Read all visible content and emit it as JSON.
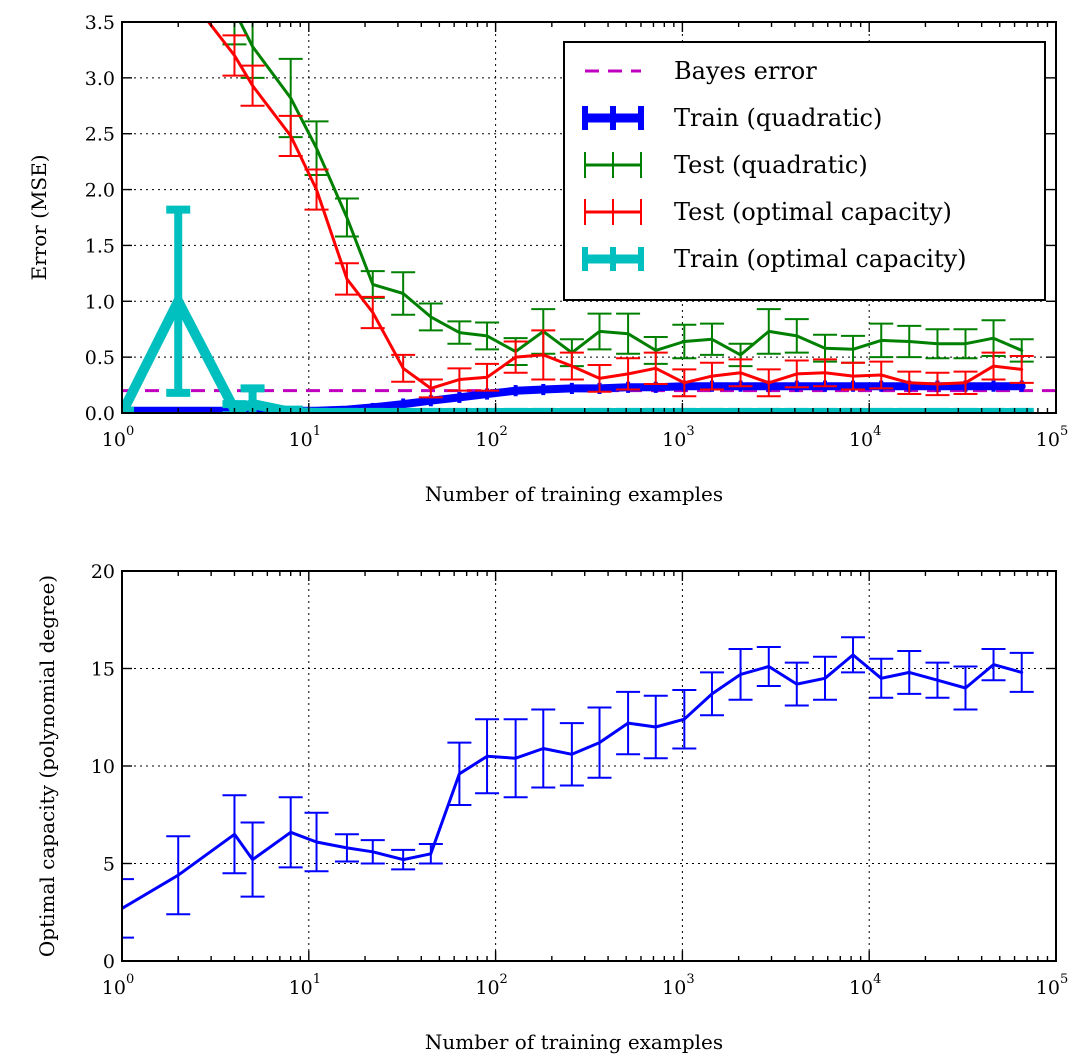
{
  "chart_data": [
    {
      "type": "line",
      "xscale": "log",
      "xlim": [
        1,
        100000
      ],
      "ylim": [
        0,
        3.5
      ],
      "xlabel": "Number of training examples",
      "ylabel": "Error (MSE)",
      "xticks": [
        {
          "base": "10",
          "exp": "0"
        },
        {
          "base": "10",
          "exp": "1"
        },
        {
          "base": "10",
          "exp": "2"
        },
        {
          "base": "10",
          "exp": "3"
        },
        {
          "base": "10",
          "exp": "4"
        },
        {
          "base": "10",
          "exp": "5"
        }
      ],
      "yticks": [
        {
          "value": 0,
          "label": "0.0"
        },
        {
          "value": 0.5,
          "label": "0.5"
        },
        {
          "value": 1.0,
          "label": "1.0"
        },
        {
          "value": 1.5,
          "label": "1.5"
        },
        {
          "value": 2.0,
          "label": "2.0"
        },
        {
          "value": 2.5,
          "label": "2.5"
        },
        {
          "value": 3.0,
          "label": "3.0"
        },
        {
          "value": 3.5,
          "label": "3.5"
        }
      ],
      "grid": true,
      "legend_position": "top-right",
      "x": [
        1,
        2,
        4,
        5,
        8,
        11,
        16,
        22,
        32,
        45,
        64,
        90,
        128,
        180,
        256,
        360,
        512,
        720,
        1024,
        1440,
        2048,
        2900,
        4096,
        5800,
        8192,
        11600,
        16384,
        23200,
        32768,
        46300,
        65536
      ],
      "bayes_error": {
        "name": "Bayes error",
        "color": "#bf00bf",
        "value": 0.2
      },
      "series": [
        {
          "name": "Train (quadratic)",
          "color": "#0000ff",
          "values": [
            0.02,
            0.02,
            0.02,
            0.02,
            0.02,
            0.02,
            0.03,
            0.05,
            0.08,
            0.11,
            0.14,
            0.17,
            0.2,
            0.21,
            0.22,
            0.22,
            0.23,
            0.23,
            0.24,
            0.24,
            0.24,
            0.24,
            0.24,
            0.24,
            0.24,
            0.24,
            0.24,
            0.24,
            0.24,
            0.24,
            0.24
          ],
          "errors": [
            0.02,
            0.02,
            0.02,
            0.02,
            0.02,
            0.02,
            0.03,
            0.04,
            0.05,
            0.05,
            0.05,
            0.05,
            0.05,
            0.05,
            0.05,
            0.05,
            0.05,
            0.05,
            0.05,
            0.05,
            0.05,
            0.05,
            0.05,
            0.05,
            0.05,
            0.05,
            0.05,
            0.05,
            0.05,
            0.05,
            0.05
          ]
        },
        {
          "name": "Test (quadratic)",
          "color": "#008000",
          "x": [
            4,
            5,
            8,
            11,
            16,
            22,
            32,
            45,
            64,
            90,
            128,
            180,
            256,
            360,
            512,
            720,
            1024,
            1440,
            2048,
            2900,
            4096,
            5800,
            8192,
            11600,
            16384,
            23200,
            32768,
            46300,
            65536
          ],
          "values": [
            3.6,
            3.28,
            2.82,
            2.37,
            1.75,
            1.15,
            1.07,
            0.86,
            0.72,
            0.69,
            0.55,
            0.73,
            0.54,
            0.73,
            0.71,
            0.56,
            0.64,
            0.66,
            0.52,
            0.73,
            0.69,
            0.58,
            0.57,
            0.65,
            0.64,
            0.62,
            0.62,
            0.67,
            0.56
          ],
          "errors": [
            0.3,
            0.28,
            0.35,
            0.24,
            0.17,
            0.12,
            0.19,
            0.12,
            0.1,
            0.12,
            0.12,
            0.2,
            0.12,
            0.16,
            0.18,
            0.12,
            0.15,
            0.14,
            0.1,
            0.2,
            0.15,
            0.12,
            0.12,
            0.15,
            0.14,
            0.13,
            0.13,
            0.16,
            0.1
          ]
        },
        {
          "name": "Test (optimal capacity)",
          "color": "#ff0000",
          "x": [
            1,
            4,
            5,
            8,
            11,
            16,
            22,
            32,
            45,
            64,
            90,
            128,
            180,
            256,
            360,
            512,
            720,
            1024,
            1440,
            2048,
            2900,
            4096,
            5800,
            8192,
            11600,
            16384,
            23200,
            32768,
            46300,
            65536
          ],
          "values": [
            4.5,
            3.2,
            2.93,
            2.48,
            2.0,
            1.2,
            0.9,
            0.4,
            0.22,
            0.3,
            0.32,
            0.5,
            0.52,
            0.42,
            0.31,
            0.35,
            0.4,
            0.27,
            0.33,
            0.36,
            0.27,
            0.35,
            0.36,
            0.33,
            0.34,
            0.27,
            0.26,
            0.27,
            0.42,
            0.39
          ],
          "errors": [
            0.3,
            0.18,
            0.18,
            0.18,
            0.18,
            0.14,
            0.14,
            0.12,
            0.08,
            0.1,
            0.12,
            0.14,
            0.22,
            0.12,
            0.12,
            0.14,
            0.14,
            0.12,
            0.12,
            0.12,
            0.12,
            0.12,
            0.12,
            0.12,
            0.12,
            0.1,
            0.1,
            0.1,
            0.12,
            0.12
          ]
        },
        {
          "name": "Train (optimal capacity)",
          "color": "#00bfbf",
          "values": [
            0.0,
            1.0,
            0.03,
            0.08,
            0.01,
            0.0,
            0.0,
            0.0,
            0.0,
            0.0,
            0.0,
            0.0,
            0.0,
            0.0,
            0.0,
            0.0,
            0.0,
            0.0,
            0.0,
            0.0,
            0.0,
            0.0,
            0.0,
            0.0,
            0.0,
            0.0,
            0.0,
            0.0,
            0.0,
            0.0,
            0.0
          ],
          "errors": [
            0.02,
            0.82,
            0.05,
            0.14,
            0.02,
            0.01,
            0.01,
            0.01,
            0.01,
            0.01,
            0.01,
            0.01,
            0.01,
            0.01,
            0.01,
            0.01,
            0.01,
            0.01,
            0.01,
            0.01,
            0.01,
            0.01,
            0.01,
            0.01,
            0.01,
            0.01,
            0.01,
            0.01,
            0.01,
            0.01,
            0.01
          ]
        }
      ]
    },
    {
      "type": "line",
      "xscale": "log",
      "xlim": [
        1,
        100000
      ],
      "ylim": [
        0,
        20
      ],
      "xlabel": "Number of training examples",
      "ylabel": "Optimal capacity (polynomial degree)",
      "xticks": [
        {
          "base": "10",
          "exp": "0"
        },
        {
          "base": "10",
          "exp": "1"
        },
        {
          "base": "10",
          "exp": "2"
        },
        {
          "base": "10",
          "exp": "3"
        },
        {
          "base": "10",
          "exp": "4"
        },
        {
          "base": "10",
          "exp": "5"
        }
      ],
      "yticks": [
        {
          "value": 0,
          "label": "0"
        },
        {
          "value": 5,
          "label": "5"
        },
        {
          "value": 10,
          "label": "10"
        },
        {
          "value": 15,
          "label": "15"
        },
        {
          "value": 20,
          "label": "20"
        }
      ],
      "grid": true,
      "series": [
        {
          "color": "#0000ff",
          "x": [
            1,
            2,
            4,
            5,
            8,
            11,
            16,
            22,
            32,
            45,
            64,
            90,
            128,
            180,
            256,
            360,
            512,
            720,
            1024,
            1440,
            2048,
            2900,
            4096,
            5800,
            8192,
            11600,
            16384,
            23200,
            32768,
            46300,
            65536
          ],
          "values": [
            2.7,
            4.4,
            6.5,
            5.2,
            6.6,
            6.1,
            5.8,
            5.6,
            5.2,
            5.5,
            9.6,
            10.5,
            10.4,
            10.9,
            10.6,
            11.2,
            12.2,
            12.0,
            12.4,
            13.7,
            14.7,
            15.1,
            14.2,
            14.5,
            15.7,
            14.5,
            14.8,
            14.4,
            14.0,
            15.2,
            14.8
          ],
          "errors": [
            1.5,
            2.0,
            2.0,
            1.9,
            1.8,
            1.5,
            0.7,
            0.6,
            0.5,
            0.5,
            1.6,
            1.9,
            2.0,
            2.0,
            1.6,
            1.8,
            1.6,
            1.6,
            1.5,
            1.1,
            1.3,
            1.0,
            1.1,
            1.1,
            0.9,
            1.0,
            1.1,
            0.9,
            1.1,
            0.8,
            1.0
          ]
        }
      ]
    }
  ]
}
